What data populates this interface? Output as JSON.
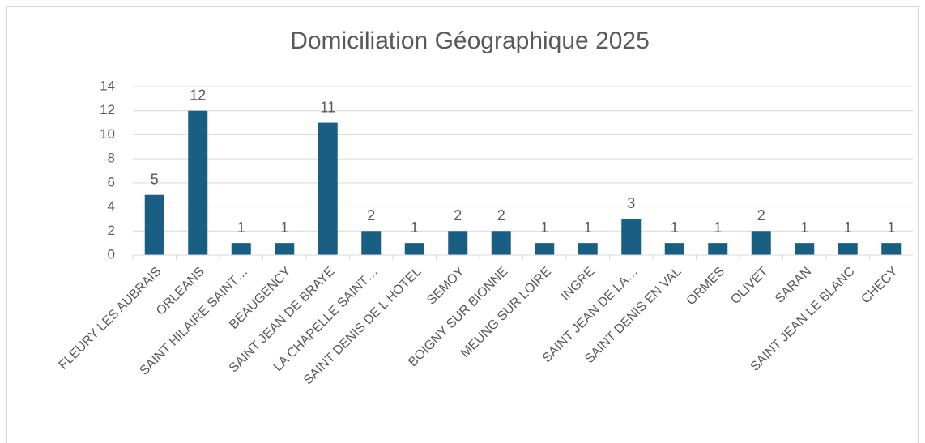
{
  "chart_data": {
    "type": "bar",
    "title": "Domiciliation Géographique 2025",
    "categories": [
      "FLEURY LES AUBRAIS",
      "ORLEANS",
      "SAINT HILAIRE SAINT…",
      "BEAUGENCY",
      "SAINT JEAN DE BRAYE",
      "LA CHAPELLE SAINT…",
      "SAINT DENIS DE L HOTEL",
      "SEMOY",
      "BOIGNY SUR BIONNE",
      "MEUNG SUR LOIRE",
      "INGRE",
      "SAINT JEAN DE LA…",
      "SAINT DENIS EN VAL",
      "ORMES",
      "OLIVET",
      "SARAN",
      "SAINT JEAN LE BLANC",
      "CHECY"
    ],
    "values": [
      5,
      12,
      1,
      1,
      11,
      2,
      1,
      2,
      2,
      1,
      1,
      3,
      1,
      1,
      2,
      1,
      1,
      1
    ],
    "color": "#195e83",
    "ylim": [
      0,
      14
    ],
    "yticks": [
      0,
      2,
      4,
      6,
      8,
      10,
      12,
      14
    ],
    "grid": true
  }
}
